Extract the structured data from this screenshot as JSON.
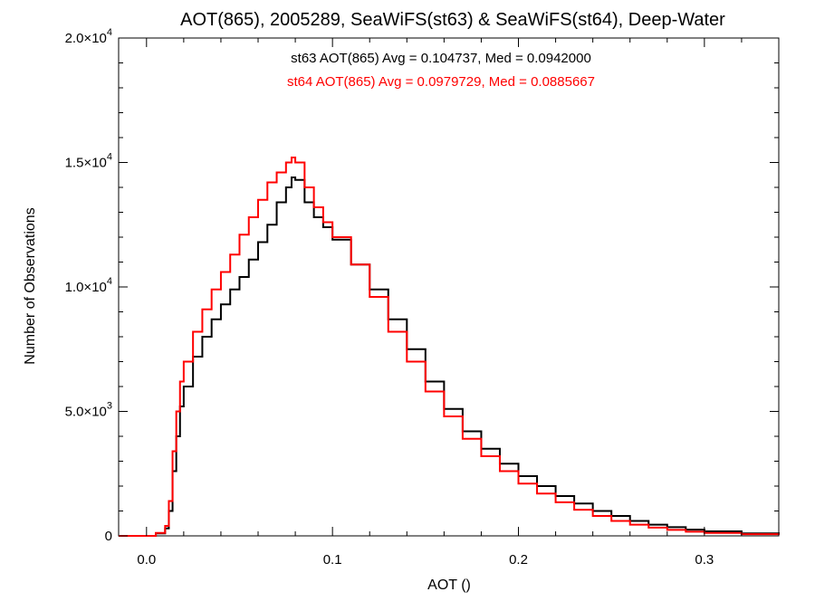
{
  "chart_data": {
    "type": "line",
    "step": true,
    "title": "AOT(865), 2005289, SeaWiFS(st63) & SeaWiFS(st64), Deep-Water",
    "xlabel": "AOT ()",
    "ylabel": "Number of Observations",
    "xlim": [
      -0.015,
      0.34
    ],
    "ylim": [
      0,
      20000
    ],
    "x_ticks": [
      {
        "value": 0.0,
        "label": "0.0"
      },
      {
        "value": 0.1,
        "label": "0.1"
      },
      {
        "value": 0.2,
        "label": "0.2"
      },
      {
        "value": 0.3,
        "label": "0.3"
      }
    ],
    "y_ticks": [
      {
        "value": 0,
        "label": "0",
        "mant": "0",
        "exp": ""
      },
      {
        "value": 5000,
        "label": "5.0×10^3",
        "mant": "5.0×10",
        "exp": "3"
      },
      {
        "value": 10000,
        "label": "1.0×10^4",
        "mant": "1.0×10",
        "exp": "4"
      },
      {
        "value": 15000,
        "label": "1.5×10^4",
        "mant": "1.5×10",
        "exp": "4"
      },
      {
        "value": 20000,
        "label": "2.0×10^4",
        "mant": "2.0×10",
        "exp": "4"
      }
    ],
    "annotations": [
      {
        "text": "st63 AOT(865) Avg = 0.104737, Med = 0.0942000",
        "color": "#000000"
      },
      {
        "text": "st64 AOT(865) Avg = 0.0979729, Med = 0.0885667",
        "color": "#ff0000"
      }
    ],
    "series": [
      {
        "color": "#000000",
        "x": [
          -0.015,
          0.0,
          0.005,
          0.01,
          0.012,
          0.014,
          0.016,
          0.018,
          0.02,
          0.025,
          0.03,
          0.035,
          0.04,
          0.045,
          0.05,
          0.055,
          0.06,
          0.065,
          0.07,
          0.075,
          0.078,
          0.08,
          0.085,
          0.09,
          0.095,
          0.1,
          0.11,
          0.12,
          0.13,
          0.14,
          0.15,
          0.16,
          0.17,
          0.18,
          0.19,
          0.2,
          0.21,
          0.22,
          0.23,
          0.24,
          0.25,
          0.26,
          0.27,
          0.28,
          0.29,
          0.3,
          0.32,
          0.34
        ],
        "y": [
          0,
          0,
          100,
          300,
          1000,
          2600,
          4000,
          5200,
          6000,
          7200,
          8000,
          8700,
          9300,
          9900,
          10400,
          11100,
          11800,
          12500,
          13400,
          14000,
          14400,
          14300,
          13400,
          12800,
          12400,
          11900,
          10900,
          9900,
          8700,
          7500,
          6200,
          5100,
          4200,
          3500,
          2900,
          2400,
          2000,
          1600,
          1300,
          1000,
          800,
          600,
          450,
          350,
          250,
          180,
          100,
          60
        ]
      },
      {
        "color": "#ff0000",
        "x": [
          -0.015,
          0.0,
          0.005,
          0.01,
          0.012,
          0.014,
          0.016,
          0.018,
          0.02,
          0.025,
          0.03,
          0.035,
          0.04,
          0.045,
          0.05,
          0.055,
          0.06,
          0.065,
          0.07,
          0.075,
          0.078,
          0.08,
          0.085,
          0.09,
          0.095,
          0.1,
          0.11,
          0.12,
          0.13,
          0.14,
          0.15,
          0.16,
          0.17,
          0.18,
          0.19,
          0.2,
          0.21,
          0.22,
          0.23,
          0.24,
          0.25,
          0.26,
          0.27,
          0.28,
          0.29,
          0.3,
          0.32,
          0.34
        ],
        "y": [
          0,
          0,
          120,
          400,
          1400,
          3400,
          5000,
          6200,
          7000,
          8200,
          9100,
          9900,
          10600,
          11300,
          12100,
          12800,
          13500,
          14200,
          14600,
          15000,
          15200,
          15000,
          14000,
          13200,
          12600,
          12000,
          10900,
          9600,
          8200,
          7000,
          5800,
          4800,
          3900,
          3200,
          2600,
          2100,
          1700,
          1350,
          1050,
          800,
          600,
          450,
          330,
          240,
          170,
          120,
          70,
          40
        ]
      }
    ]
  }
}
